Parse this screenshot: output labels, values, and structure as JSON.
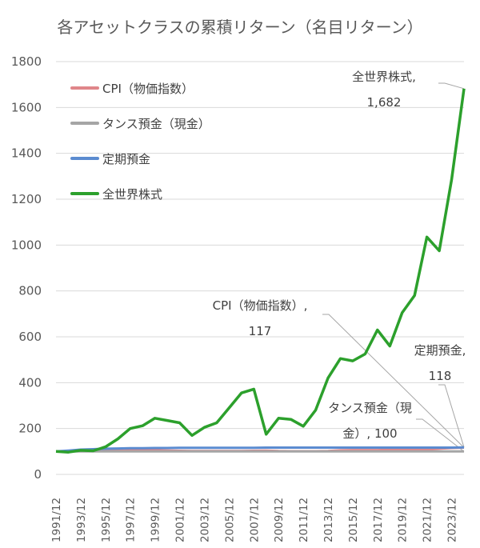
{
  "chart_data": {
    "type": "line",
    "title": "各アセットクラスの累積リターン（名目リターン）",
    "xlabel": "",
    "ylabel": "",
    "ylim": [
      0,
      1800
    ],
    "yticks": [
      0,
      200,
      400,
      600,
      800,
      1000,
      1200,
      1400,
      1600,
      1800
    ],
    "grid": true,
    "legend_position": "upper-left-inside",
    "x": [
      "1991/12",
      "1992/12",
      "1993/12",
      "1994/12",
      "1995/12",
      "1996/12",
      "1997/12",
      "1998/12",
      "1999/12",
      "2000/12",
      "2001/12",
      "2002/12",
      "2003/12",
      "2004/12",
      "2005/12",
      "2006/12",
      "2007/12",
      "2008/12",
      "2009/12",
      "2010/12",
      "2011/12",
      "2012/12",
      "2013/12",
      "2014/12",
      "2015/12",
      "2016/12",
      "2017/12",
      "2018/12",
      "2019/12",
      "2020/12",
      "2021/12",
      "2022/12",
      "2023/12",
      "2024/12"
    ],
    "xtick_labels": [
      "1991/12",
      "1993/12",
      "1995/12",
      "1997/12",
      "1999/12",
      "2001/12",
      "2003/12",
      "2005/12",
      "2007/12",
      "2009/12",
      "2011/12",
      "2013/12",
      "2015/12",
      "2017/12",
      "2019/12",
      "2021/12",
      "2023/12"
    ],
    "series": [
      {
        "name": "CPI（物価指数）",
        "color": "#e0868a",
        "values": [
          100,
          101,
          102,
          103,
          103,
          103,
          105,
          106,
          105,
          104,
          103,
          102,
          102,
          102,
          102,
          102,
          103,
          104,
          102,
          101,
          101,
          101,
          102,
          105,
          106,
          106,
          106,
          107,
          108,
          108,
          108,
          112,
          115,
          117
        ]
      },
      {
        "name": "タンス預金（現金）",
        "color": "#a5a5a5",
        "values": [
          100,
          100,
          100,
          100,
          100,
          100,
          100,
          100,
          100,
          100,
          100,
          100,
          100,
          100,
          100,
          100,
          100,
          100,
          100,
          100,
          100,
          100,
          100,
          100,
          100,
          100,
          100,
          100,
          100,
          100,
          100,
          100,
          100,
          100
        ]
      },
      {
        "name": "定期預金",
        "color": "#5b8bd0",
        "values": [
          100,
          104,
          108,
          110,
          112,
          113,
          114,
          114,
          115,
          115,
          116,
          116,
          116,
          116,
          116,
          116,
          116,
          117,
          117,
          117,
          117,
          117,
          117,
          117,
          117,
          117,
          117,
          117,
          117,
          117,
          117,
          117,
          117,
          118
        ]
      },
      {
        "name": "全世界株式",
        "color": "#2ca02c",
        "values": [
          100,
          97,
          105,
          103,
          120,
          155,
          200,
          212,
          245,
          235,
          225,
          170,
          205,
          225,
          290,
          355,
          372,
          175,
          245,
          240,
          210,
          280,
          420,
          505,
          495,
          525,
          630,
          560,
          705,
          780,
          1035,
          975,
          1285,
          1682
        ]
      }
    ],
    "annotations": [
      {
        "series": "全世界株式",
        "line1": "全世界株式,",
        "line2": "1,682"
      },
      {
        "series": "CPI（物価指数）",
        "line1": "CPI（物価指数）,",
        "line2": "117"
      },
      {
        "series": "定期預金",
        "line1": "定期預金,",
        "line2": "118"
      },
      {
        "series": "タンス預金（現金）",
        "line1": "タンス預金（現",
        "line2": "金）, 100"
      }
    ]
  }
}
